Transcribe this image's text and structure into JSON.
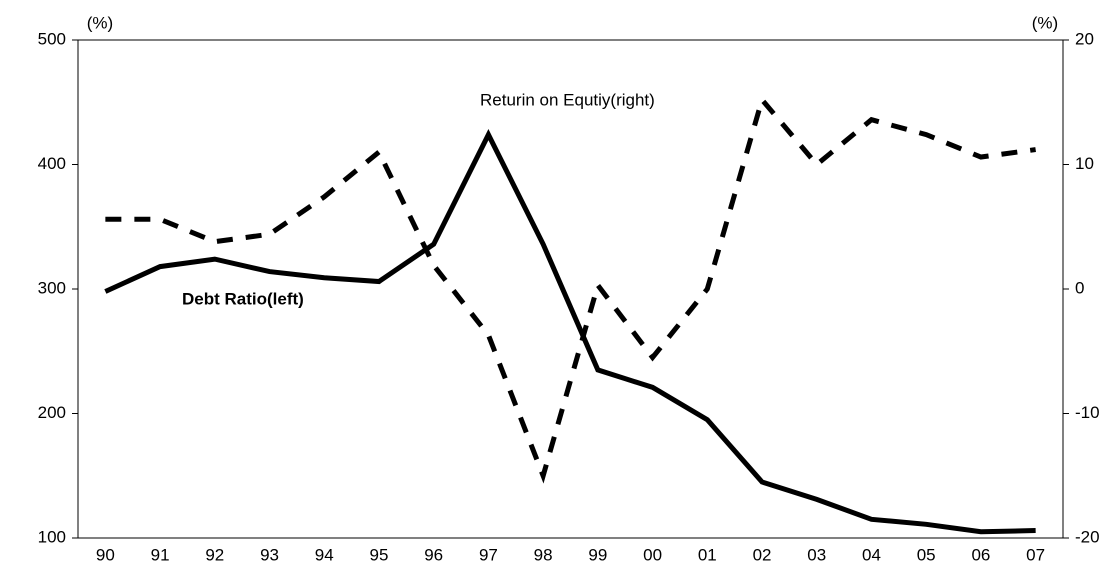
{
  "chart_data": {
    "type": "line",
    "y_label": "(%)",
    "y2_label": "(%)",
    "categories": [
      "90",
      "91",
      "92",
      "93",
      "94",
      "95",
      "96",
      "97",
      "98",
      "99",
      "00",
      "01",
      "02",
      "03",
      "04",
      "05",
      "06",
      "07"
    ],
    "series": [
      {
        "name": "Debt Ratio(left)",
        "color": "#000000",
        "dash": "solid",
        "values": [
          298,
          318,
          324,
          314,
          309,
          306,
          336,
          424,
          336,
          235,
          221,
          195,
          145,
          131,
          115,
          111,
          105,
          106
        ]
      },
      {
        "name": "Returin on Equtiy(right)",
        "color": "#000000",
        "dash": "dashed",
        "axis": "y2",
        "values": [
          5.6,
          5.6,
          3.8,
          4.4,
          7.4,
          11,
          1.9,
          -3.7,
          -15,
          0.3,
          -5.5,
          0,
          15.2,
          10,
          13.6,
          12.4,
          10.6,
          11.2
        ]
      }
    ],
    "ylim": [
      100,
      500
    ],
    "yticks": [
      100,
      200,
      300,
      400,
      500
    ],
    "y2lim": [
      -20,
      20
    ],
    "y2ticks": [
      -20,
      -10,
      0,
      10,
      20
    ],
    "grid": false
  }
}
